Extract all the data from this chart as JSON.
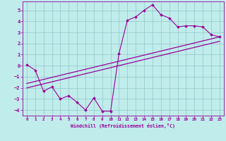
{
  "xlabel": "Windchill (Refroidissement éolien,°C)",
  "bg_color": "#c0ecec",
  "grid_color": "#99cccc",
  "line_color": "#990099",
  "xlim": [
    -0.5,
    23.5
  ],
  "ylim": [
    -4.5,
    5.8
  ],
  "yticks": [
    -4,
    -3,
    -2,
    -1,
    0,
    1,
    2,
    3,
    4,
    5
  ],
  "xticks": [
    0,
    1,
    2,
    3,
    4,
    5,
    6,
    7,
    8,
    9,
    10,
    11,
    12,
    13,
    14,
    15,
    16,
    17,
    18,
    19,
    20,
    21,
    22,
    23
  ],
  "data_x": [
    0,
    1,
    2,
    3,
    4,
    5,
    6,
    7,
    8,
    9,
    10,
    11,
    12,
    13,
    14,
    15,
    16,
    17,
    18,
    19,
    20,
    21,
    22,
    23
  ],
  "data_y": [
    0.1,
    -0.4,
    -2.3,
    -1.9,
    -3.0,
    -2.7,
    -3.3,
    -4.0,
    -2.9,
    -4.1,
    -4.1,
    1.1,
    4.1,
    4.4,
    5.0,
    5.5,
    4.6,
    4.3,
    3.5,
    3.6,
    3.6,
    3.5,
    2.8,
    2.6
  ],
  "trend1_x": [
    0,
    23
  ],
  "trend1_y": [
    -1.6,
    2.6
  ],
  "trend2_x": [
    0,
    23
  ],
  "trend2_y": [
    -2.0,
    2.2
  ]
}
